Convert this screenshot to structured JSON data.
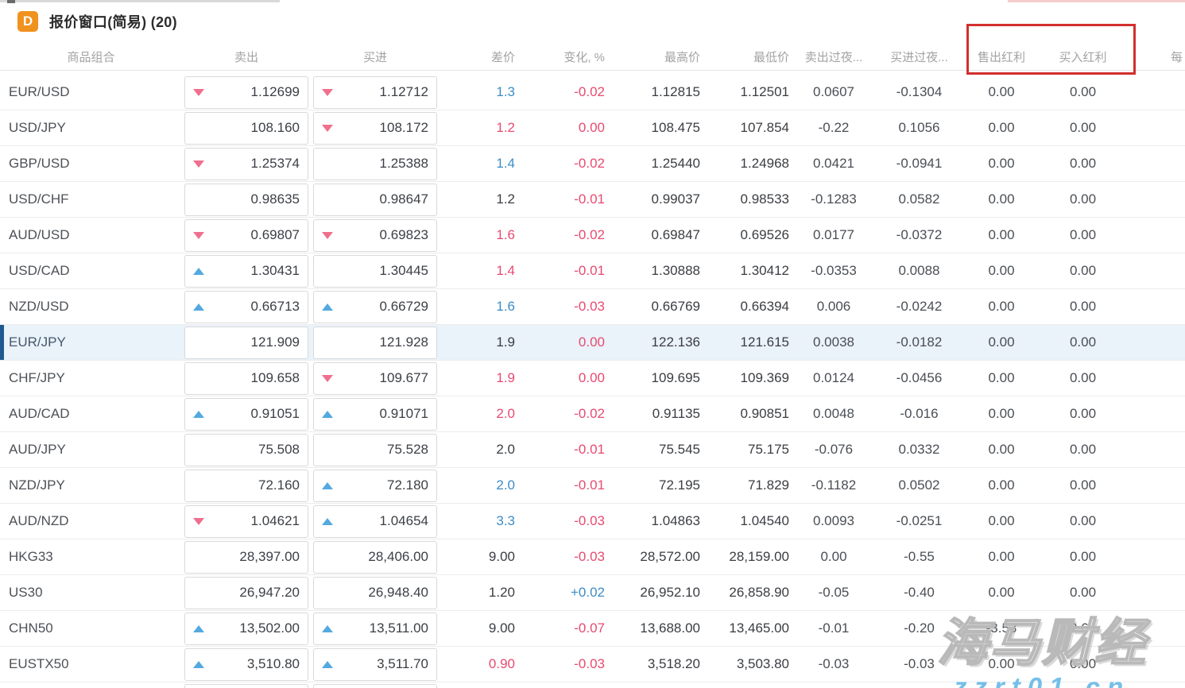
{
  "window": {
    "icon_letter": "D",
    "icon_color": "#f0921e",
    "title": "报价窗口(简易) (20)"
  },
  "table": {
    "headers": {
      "symbol": "商品组合",
      "sell": "卖出",
      "buy": "买进",
      "spread": "差价",
      "change": "变化, %",
      "high": "最高价",
      "low": "最低价",
      "sell_swap": "卖出过夜...",
      "buy_swap": "买进过夜...",
      "sell_dividend": "售出红利",
      "buy_dividend": "买入红利",
      "per": "每"
    },
    "rows": [
      {
        "sym": "EUR/USD",
        "sellArrow": "down",
        "sell": "1.12699",
        "buyArrow": "down",
        "buy": "1.12712",
        "spread": "1.3",
        "spreadC": "b",
        "chg": "-0.02",
        "chgC": "p",
        "high": "1.12815",
        "low": "1.12501",
        "sswap": "0.0607",
        "bswap": "-0.1304",
        "sdiv": "0.00",
        "bdiv": "0.00"
      },
      {
        "sym": "USD/JPY",
        "sellArrow": "",
        "sell": "108.160",
        "buyArrow": "down",
        "buy": "108.172",
        "spread": "1.2",
        "spreadC": "p",
        "chg": "0.00",
        "chgC": "p",
        "high": "108.475",
        "low": "107.854",
        "sswap": "-0.22",
        "bswap": "0.1056",
        "sdiv": "0.00",
        "bdiv": "0.00"
      },
      {
        "sym": "GBP/USD",
        "sellArrow": "down",
        "sell": "1.25374",
        "buyArrow": "",
        "buy": "1.25388",
        "spread": "1.4",
        "spreadC": "b",
        "chg": "-0.02",
        "chgC": "p",
        "high": "1.25440",
        "low": "1.24968",
        "sswap": "0.0421",
        "bswap": "-0.0941",
        "sdiv": "0.00",
        "bdiv": "0.00"
      },
      {
        "sym": "USD/CHF",
        "sellArrow": "",
        "sell": "0.98635",
        "buyArrow": "",
        "buy": "0.98647",
        "spread": "1.2",
        "spreadC": "d",
        "chg": "-0.01",
        "chgC": "p",
        "high": "0.99037",
        "low": "0.98533",
        "sswap": "-0.1283",
        "bswap": "0.0582",
        "sdiv": "0.00",
        "bdiv": "0.00"
      },
      {
        "sym": "AUD/USD",
        "sellArrow": "down",
        "sell": "0.69807",
        "buyArrow": "down",
        "buy": "0.69823",
        "spread": "1.6",
        "spreadC": "p",
        "chg": "-0.02",
        "chgC": "p",
        "high": "0.69847",
        "low": "0.69526",
        "sswap": "0.0177",
        "bswap": "-0.0372",
        "sdiv": "0.00",
        "bdiv": "0.00"
      },
      {
        "sym": "USD/CAD",
        "sellArrow": "up",
        "sell": "1.30431",
        "buyArrow": "",
        "buy": "1.30445",
        "spread": "1.4",
        "spreadC": "p",
        "chg": "-0.01",
        "chgC": "p",
        "high": "1.30888",
        "low": "1.30412",
        "sswap": "-0.0353",
        "bswap": "0.0088",
        "sdiv": "0.00",
        "bdiv": "0.00"
      },
      {
        "sym": "NZD/USD",
        "sellArrow": "up",
        "sell": "0.66713",
        "buyArrow": "up",
        "buy": "0.66729",
        "spread": "1.6",
        "spreadC": "b",
        "chg": "-0.03",
        "chgC": "p",
        "high": "0.66769",
        "low": "0.66394",
        "sswap": "0.006",
        "bswap": "-0.0242",
        "sdiv": "0.00",
        "bdiv": "0.00"
      },
      {
        "sym": "EUR/JPY",
        "hl": true,
        "sellArrow": "",
        "sell": "121.909",
        "buyArrow": "",
        "buy": "121.928",
        "spread": "1.9",
        "spreadC": "d",
        "chg": "0.00",
        "chgC": "p",
        "high": "122.136",
        "low": "121.615",
        "sswap": "0.0038",
        "bswap": "-0.0182",
        "sdiv": "0.00",
        "bdiv": "0.00"
      },
      {
        "sym": "CHF/JPY",
        "sellArrow": "",
        "sell": "109.658",
        "buyArrow": "down",
        "buy": "109.677",
        "spread": "1.9",
        "spreadC": "p",
        "chg": "0.00",
        "chgC": "p",
        "high": "109.695",
        "low": "109.369",
        "sswap": "0.0124",
        "bswap": "-0.0456",
        "sdiv": "0.00",
        "bdiv": "0.00"
      },
      {
        "sym": "AUD/CAD",
        "sellArrow": "up",
        "sell": "0.91051",
        "buyArrow": "up",
        "buy": "0.91071",
        "spread": "2.0",
        "spreadC": "p",
        "chg": "-0.02",
        "chgC": "p",
        "high": "0.91135",
        "low": "0.90851",
        "sswap": "0.0048",
        "bswap": "-0.016",
        "sdiv": "0.00",
        "bdiv": "0.00"
      },
      {
        "sym": "AUD/JPY",
        "sellArrow": "",
        "sell": "75.508",
        "buyArrow": "",
        "buy": "75.528",
        "spread": "2.0",
        "spreadC": "d",
        "chg": "-0.01",
        "chgC": "p",
        "high": "75.545",
        "low": "75.175",
        "sswap": "-0.076",
        "bswap": "0.0332",
        "sdiv": "0.00",
        "bdiv": "0.00"
      },
      {
        "sym": "NZD/JPY",
        "sellArrow": "",
        "sell": "72.160",
        "buyArrow": "up",
        "buy": "72.180",
        "spread": "2.0",
        "spreadC": "b",
        "chg": "-0.01",
        "chgC": "p",
        "high": "72.195",
        "low": "71.829",
        "sswap": "-0.1182",
        "bswap": "0.0502",
        "sdiv": "0.00",
        "bdiv": "0.00"
      },
      {
        "sym": "AUD/NZD",
        "sellArrow": "down",
        "sell": "1.04621",
        "buyArrow": "up",
        "buy": "1.04654",
        "spread": "3.3",
        "spreadC": "b",
        "chg": "-0.03",
        "chgC": "p",
        "high": "1.04863",
        "low": "1.04540",
        "sswap": "0.0093",
        "bswap": "-0.0251",
        "sdiv": "0.00",
        "bdiv": "0.00"
      },
      {
        "sym": "HKG33",
        "sellArrow": "",
        "sell": "28,397.00",
        "buyArrow": "",
        "buy": "28,406.00",
        "spread": "9.00",
        "spreadC": "d",
        "chg": "-0.03",
        "chgC": "p",
        "high": "28,572.00",
        "low": "28,159.00",
        "sswap": "0.00",
        "bswap": "-0.55",
        "sdiv": "0.00",
        "bdiv": "0.00"
      },
      {
        "sym": "US30",
        "sellArrow": "",
        "sell": "26,947.20",
        "buyArrow": "",
        "buy": "26,948.40",
        "spread": "1.20",
        "spreadC": "d",
        "chg": "+0.02",
        "chgC": "b",
        "high": "26,952.10",
        "low": "26,858.90",
        "sswap": "-0.05",
        "bswap": "-0.40",
        "sdiv": "0.00",
        "bdiv": "0.00"
      },
      {
        "sym": "CHN50",
        "sellArrow": "up",
        "sell": "13,502.00",
        "buyArrow": "up",
        "buy": "13,511.00",
        "spread": "9.00",
        "spreadC": "d",
        "chg": "-0.07",
        "chgC": "p",
        "high": "13,688.00",
        "low": "13,465.00",
        "sswap": "-0.01",
        "bswap": "-0.20",
        "sdiv": "-3.53",
        "bdiv": "2.64"
      },
      {
        "sym": "EUSTX50",
        "sellArrow": "up",
        "sell": "3,510.80",
        "buyArrow": "up",
        "buy": "3,511.70",
        "spread": "0.90",
        "spreadC": "p",
        "chg": "-0.03",
        "chgC": "p",
        "high": "3,518.20",
        "low": "3,503.80",
        "sswap": "-0.03",
        "bswap": "-0.03",
        "sdiv": "0.00",
        "bdiv": "0.00"
      },
      {
        "sym": "",
        "partial": true,
        "sellArrow": "",
        "sell": "",
        "buyArrow": "",
        "buy": "",
        "spread": "",
        "spreadC": "d",
        "chg": "",
        "chgC": "p",
        "high": "",
        "low": "",
        "sswap": "",
        "bswap": "",
        "sdiv": "",
        "bdiv": ""
      }
    ]
  },
  "annotation": {
    "highlight_color": "#d32f2f",
    "highlighted_columns": [
      "售出红利",
      "买入红利"
    ]
  },
  "watermark": {
    "line1": "海马财经",
    "line2": "zzrt01.cn"
  }
}
